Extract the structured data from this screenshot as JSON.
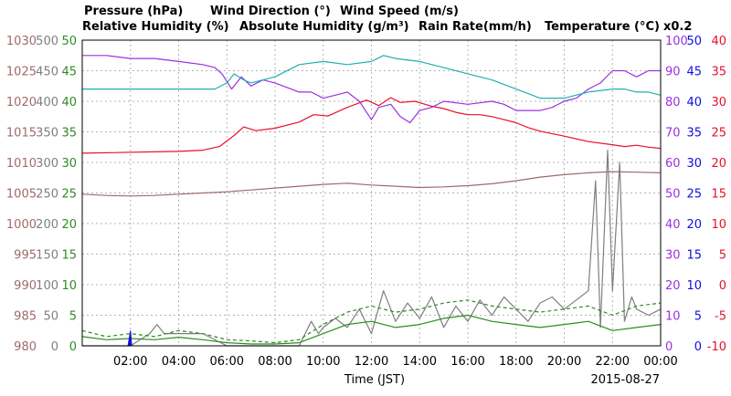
{
  "chart_data": {
    "type": "line",
    "legend_row1": {
      "pressure": "Pressure (hPa)",
      "wind_direction": "Wind Direction (°)",
      "wind_speed": "Wind Speed (m/s)"
    },
    "legend_row2": {
      "humidity": "Relative Humidity (%)",
      "absolute_humidity": "Absolute Humidity (g/m³)",
      "rain_rate": "Rain Rate(mm/h)",
      "temperature": "Temperature (°C)",
      "multiplier": "x0.2"
    },
    "xlabel": "Time (JST)",
    "date_label": "2015-08-27",
    "x_range_hours": [
      0,
      24
    ],
    "x_ticks": [
      "02:00",
      "04:00",
      "06:00",
      "08:00",
      "10:00",
      "12:00",
      "14:00",
      "16:00",
      "18:00",
      "20:00",
      "22:00",
      "00:00"
    ],
    "grid": true,
    "axes": {
      "pressure_ticks": [
        "1030",
        "1025",
        "1020",
        "1015",
        "1010",
        "1005",
        "1000",
        "995",
        "990",
        "985",
        "980"
      ],
      "wind_direction_ticks": [
        "500",
        "450",
        "400",
        "350",
        "300",
        "250",
        "200",
        "150",
        "100",
        "50",
        "0"
      ],
      "wind_speed_ticks": [
        "50",
        "45",
        "40",
        "35",
        "30",
        "25",
        "20",
        "15",
        "10",
        "5",
        "0"
      ],
      "humidity_ticks": [
        "100",
        "90",
        "80",
        "70",
        "60",
        "50",
        "40",
        "30",
        "20",
        "10",
        "0"
      ],
      "rain_rate_ticks": [
        "50",
        "45",
        "40",
        "35",
        "30",
        "25",
        "20",
        "15",
        "10",
        "5",
        "0"
      ],
      "temperature_ticks": [
        "40",
        "35",
        "30",
        "25",
        "20",
        "15",
        "10",
        "5",
        "0",
        "-5",
        "-10"
      ]
    },
    "colors": {
      "pressure": "#a06a6a",
      "wind_direction": "#7f7f7f",
      "wind_speed": "#2e8b22",
      "humidity": "#9b30e0",
      "absolute_humidity": "#20b0b0",
      "rain_rate": "#1010e0",
      "temperature": "#e8102a",
      "grid": "#b4b4b4"
    },
    "series": [
      {
        "name": "Temperature (°C)",
        "key": "temperature",
        "hours": [
          0,
          4,
          5,
          5.7,
          6.3,
          6.7,
          7.2,
          8,
          9,
          9.6,
          10.2,
          11,
          11.8,
          12.3,
          12.8,
          13.2,
          13.8,
          14.5,
          15,
          15.5,
          16,
          16.5,
          17,
          17.5,
          18,
          18.5,
          19,
          20,
          21,
          22,
          22.5,
          23,
          23.5,
          24
        ],
        "values": [
          21.5,
          21.8,
          22.0,
          22.6,
          24.4,
          25.8,
          25.2,
          25.6,
          26.6,
          27.8,
          27.6,
          29.0,
          30.2,
          29.3,
          30.6,
          29.8,
          30.0,
          29.2,
          28.8,
          28.2,
          27.8,
          27.8,
          27.5,
          27.0,
          26.5,
          25.7,
          25.1,
          24.3,
          23.4,
          22.9,
          22.6,
          22.8,
          22.5,
          22.3
        ]
      },
      {
        "name": "Relative Humidity (%)",
        "key": "humidity",
        "hours": [
          0,
          1,
          2,
          3,
          4,
          5,
          5.5,
          5.8,
          6.2,
          6.6,
          7,
          7.5,
          8,
          9,
          9.5,
          10,
          10.5,
          11,
          11.5,
          12,
          12.3,
          12.8,
          13.2,
          13.6,
          14,
          14.5,
          15,
          16,
          17,
          17.5,
          18,
          19,
          19.5,
          20,
          20.5,
          21,
          21.5,
          22,
          22.5,
          23,
          23.5,
          24
        ],
        "values": [
          95,
          95,
          94,
          94,
          93,
          92,
          91,
          89,
          84,
          88,
          85,
          87,
          86,
          83,
          83,
          81,
          82,
          83,
          80,
          74,
          78,
          79,
          75,
          73,
          77,
          78,
          80,
          79,
          80,
          79,
          77,
          77,
          78,
          80,
          81,
          84,
          86,
          90,
          90,
          88,
          90,
          90
        ]
      },
      {
        "name": "Absolute Humidity (g/m³)",
        "key": "absolute_humidity",
        "hours": [
          0,
          2,
          4,
          5.5,
          6,
          6.3,
          6.7,
          7,
          8,
          9,
          10,
          11,
          12,
          12.5,
          13,
          14,
          15,
          16,
          17,
          18,
          19,
          20,
          21,
          22,
          22.5,
          23,
          23.5,
          24
        ],
        "values": [
          84,
          84,
          84,
          84,
          86,
          89,
          87,
          86,
          88,
          92,
          93,
          92,
          93,
          95,
          94,
          93,
          91,
          89,
          87,
          84,
          81,
          81,
          83,
          84,
          84,
          83,
          83,
          82
        ]
      },
      {
        "name": "Pressure (hPa)",
        "key": "pressure",
        "hours": [
          0,
          1,
          2,
          3,
          4,
          5,
          6,
          7,
          8,
          9,
          10,
          11,
          12,
          13,
          14,
          15,
          16,
          17,
          18,
          19,
          20,
          21,
          22,
          23,
          24
        ],
        "values": [
          1004.8,
          1004.6,
          1004.5,
          1004.6,
          1004.8,
          1005.0,
          1005.2,
          1005.5,
          1005.8,
          1006.1,
          1006.4,
          1006.6,
          1006.3,
          1006.1,
          1005.9,
          1006.0,
          1006.2,
          1006.5,
          1007.0,
          1007.6,
          1008.0,
          1008.3,
          1008.5,
          1008.4,
          1008.3
        ]
      },
      {
        "name": "Wind Direction (°)",
        "key": "wind_direction",
        "hours": [
          0,
          1,
          2,
          2.8,
          3.1,
          3.4,
          4,
          5,
          6,
          7,
          8,
          9,
          9.5,
          9.8,
          10,
          10.5,
          11,
          11.5,
          12,
          12.5,
          13,
          13.5,
          14,
          14.5,
          15,
          15.5,
          16,
          16.5,
          17,
          17.5,
          18,
          18.5,
          19,
          19.5,
          20,
          20.5,
          21,
          21.3,
          21.5,
          21.8,
          22,
          22.3,
          22.5,
          22.8,
          23,
          23.5,
          24
        ],
        "values": [
          0,
          0,
          0,
          20,
          35,
          20,
          20,
          20,
          0,
          0,
          0,
          0,
          40,
          20,
          30,
          45,
          30,
          60,
          20,
          90,
          40,
          70,
          45,
          80,
          30,
          65,
          40,
          75,
          50,
          80,
          60,
          40,
          70,
          80,
          60,
          75,
          90,
          270,
          30,
          320,
          90,
          300,
          40,
          80,
          60,
          50,
          60
        ]
      },
      {
        "name": "Wind Speed (m/s)",
        "key": "wind_speed",
        "hours": [
          0,
          1,
          2,
          3,
          4,
          5,
          6,
          7,
          8,
          9,
          10,
          11,
          12,
          13,
          14,
          15,
          16,
          17,
          18,
          19,
          20,
          21,
          22,
          23,
          24
        ],
        "values": [
          1.5,
          1.0,
          1.2,
          1.0,
          1.4,
          1.0,
          0.5,
          0.3,
          0.3,
          0.5,
          2.0,
          3.5,
          4.0,
          3.0,
          3.5,
          4.5,
          5.0,
          4.0,
          3.5,
          3.0,
          3.5,
          4.0,
          2.5,
          3.0,
          3.5
        ]
      },
      {
        "name": "Wind Speed (m/s)",
        "key": "wind_speed_gust",
        "hours": [
          0,
          1,
          2,
          3,
          4,
          5,
          6,
          7,
          8,
          9,
          10,
          11,
          12,
          13,
          14,
          15,
          16,
          17,
          18,
          19,
          20,
          21,
          22,
          23,
          24
        ],
        "values": [
          2.5,
          1.5,
          2.0,
          1.5,
          2.5,
          2.0,
          1.0,
          0.8,
          0.5,
          1.0,
          3.5,
          5.5,
          6.5,
          5.5,
          6.0,
          7.0,
          7.5,
          6.5,
          6.0,
          5.5,
          6.0,
          6.5,
          5.0,
          6.5,
          7.0
        ]
      },
      {
        "name": "Rain Rate(mm/h)",
        "key": "rain_rate",
        "hours": [
          1.9,
          2.0,
          2.05
        ],
        "values": [
          0,
          2.5,
          0
        ]
      }
    ]
  }
}
